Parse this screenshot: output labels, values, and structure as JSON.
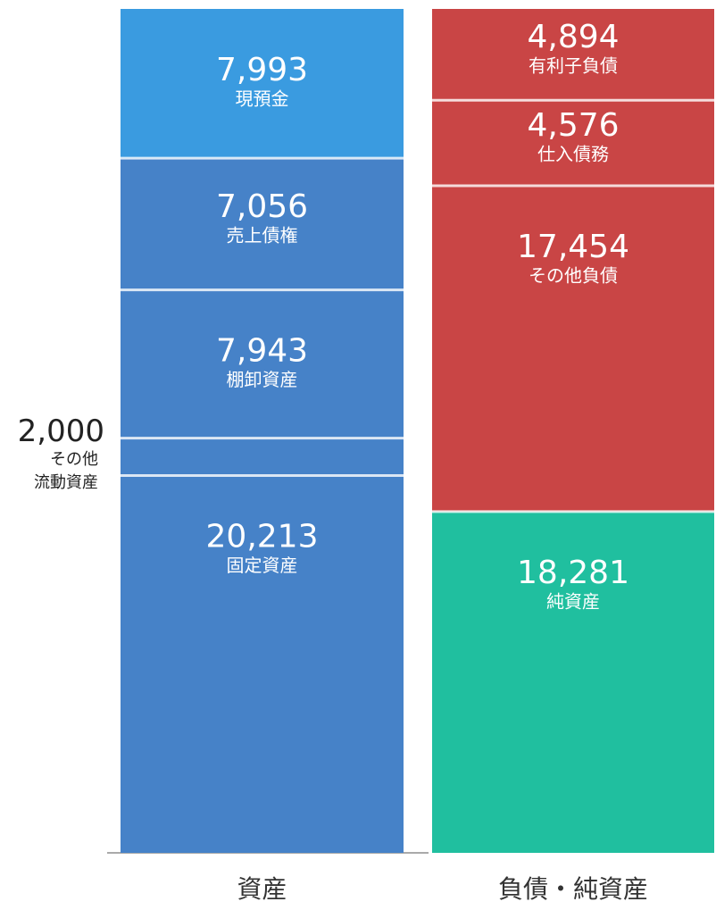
{
  "chart_data": {
    "type": "stacked-bar",
    "categories": [
      "資産",
      "負債・純資産"
    ],
    "series": [
      {
        "name": "現預金",
        "color": "#3a9be0",
        "values": [
          7993,
          null
        ],
        "value_labels": [
          "7,993",
          null
        ]
      },
      {
        "name": "売上債権",
        "color": "#4682c8",
        "values": [
          7056,
          null
        ],
        "value_labels": [
          "7,056",
          null
        ]
      },
      {
        "name": "棚卸資産",
        "color": "#4682c8",
        "values": [
          7943,
          null
        ],
        "value_labels": [
          "7,943",
          null
        ]
      },
      {
        "name": "その他\n流動資産",
        "color": "#4682c8",
        "values": [
          2000,
          null
        ],
        "value_labels": [
          "2,000",
          null
        ]
      },
      {
        "name": "固定資産",
        "color": "#4682c8",
        "values": [
          20213,
          null
        ],
        "value_labels": [
          "20,213",
          null
        ]
      },
      {
        "name": "有利子負債",
        "color": "#c94545",
        "values": [
          null,
          4894
        ],
        "value_labels": [
          null,
          "4,894"
        ]
      },
      {
        "name": "仕入債務",
        "color": "#c94545",
        "values": [
          null,
          4576
        ],
        "value_labels": [
          null,
          "4,576"
        ]
      },
      {
        "name": "その他負債",
        "color": "#c94545",
        "values": [
          null,
          17454
        ],
        "value_labels": [
          null,
          "17,454"
        ]
      },
      {
        "name": "純資産",
        "color": "#20bf9f",
        "values": [
          null,
          18281
        ],
        "value_labels": [
          null,
          "18,281"
        ]
      }
    ]
  }
}
